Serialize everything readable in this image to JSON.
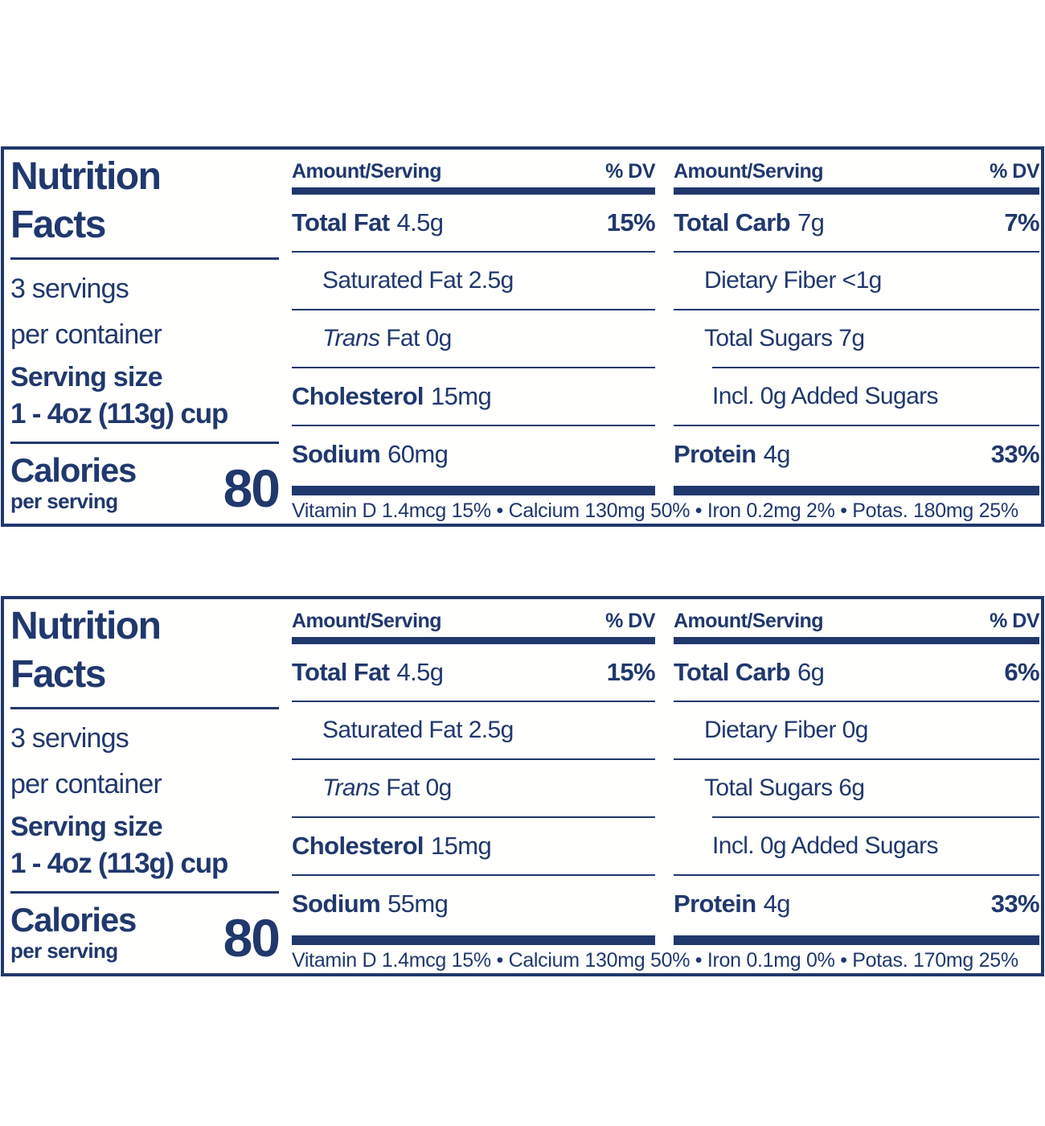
{
  "colors": {
    "navy": "#21386d"
  },
  "panels": [
    {
      "title1": "Nutrition",
      "title2": "Facts",
      "servings1": "3 servings",
      "servings2": "per container",
      "serving_size_label": "Serving size",
      "serving_size_value": "1 - 4oz (113g) cup",
      "calories_label": "Calories",
      "calories_sub": "per serving",
      "calories": "80",
      "mid": {
        "header_amount": "Amount/Serving",
        "header_dv": "% DV",
        "rows": [
          {
            "label": "Total Fat",
            "value": "4.5g",
            "pct": "15%"
          },
          {
            "text": "Saturated Fat 2.5g"
          },
          {
            "italic": "Trans",
            "text": " Fat 0g"
          },
          {
            "label": "Cholesterol",
            "value": "15mg"
          },
          {
            "label": "Sodium",
            "value": "60mg"
          }
        ]
      },
      "right": {
        "header_amount": "Amount/Serving",
        "header_dv": "% DV",
        "rows": [
          {
            "label": "Total Carb",
            "value": "7g",
            "pct": "7%"
          },
          {
            "text": "Dietary Fiber <1g"
          },
          {
            "text": "Total Sugars 7g"
          },
          {
            "text": "Incl. 0g Added Sugars"
          },
          {
            "label": "Protein",
            "value": "4g",
            "pct": "33%"
          }
        ]
      },
      "footnote": "Vitamin D 1.4mcg 15% • Calcium 130mg 50% • Iron 0.2mg 2% • Potas. 180mg 25%"
    },
    {
      "title1": "Nutrition",
      "title2": "Facts",
      "servings1": "3 servings",
      "servings2": "per container",
      "serving_size_label": "Serving size",
      "serving_size_value": "1 - 4oz (113g) cup",
      "calories_label": "Calories",
      "calories_sub": "per serving",
      "calories": "80",
      "mid": {
        "header_amount": "Amount/Serving",
        "header_dv": "% DV",
        "rows": [
          {
            "label": "Total Fat",
            "value": "4.5g",
            "pct": "15%"
          },
          {
            "text": "Saturated Fat 2.5g"
          },
          {
            "italic": "Trans",
            "text": " Fat 0g"
          },
          {
            "label": "Cholesterol",
            "value": "15mg"
          },
          {
            "label": "Sodium",
            "value": "55mg"
          }
        ]
      },
      "right": {
        "header_amount": "Amount/Serving",
        "header_dv": "% DV",
        "rows": [
          {
            "label": "Total Carb",
            "value": "6g",
            "pct": "6%"
          },
          {
            "text": "Dietary Fiber 0g"
          },
          {
            "text": "Total Sugars 6g"
          },
          {
            "text": "Incl. 0g Added Sugars"
          },
          {
            "label": "Protein",
            "value": "4g",
            "pct": "33%"
          }
        ]
      },
      "footnote": "Vitamin D 1.4mcg 15% • Calcium 130mg 50% • Iron 0.1mg 0% • Potas. 170mg 25%"
    }
  ]
}
